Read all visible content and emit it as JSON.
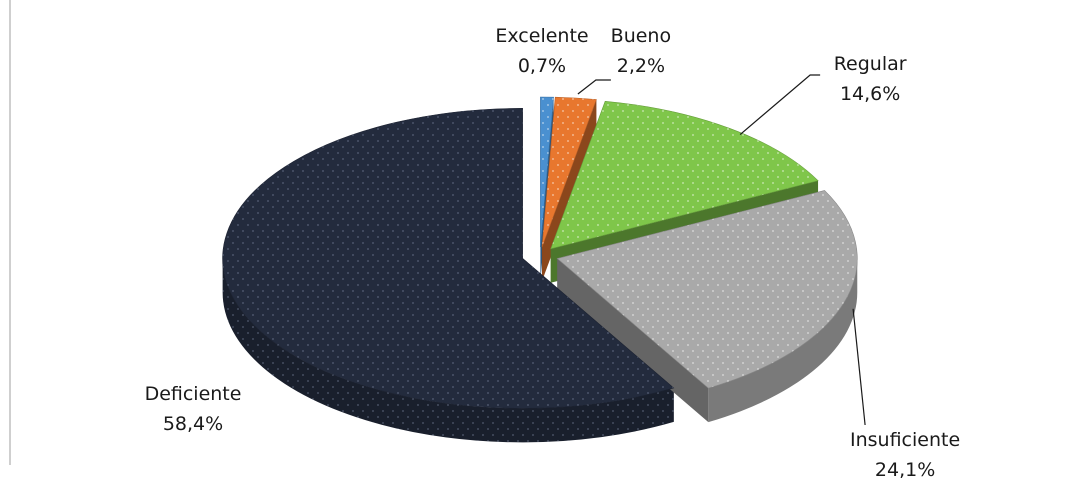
{
  "chart_data": {
    "type": "pie",
    "title": "",
    "categories": [
      "Excelente",
      "Bueno",
      "Regular",
      "Insuficiente",
      "Deficiente"
    ],
    "values": [
      0.7,
      2.2,
      14.6,
      24.1,
      58.4
    ],
    "value_labels": [
      "0,7%",
      "2,2%",
      "14,6%",
      "24,1%",
      "58,4%"
    ],
    "colors": [
      "#4a90d0",
      "#e8772e",
      "#7fc64a",
      "#a9a9a9",
      "#232b3d"
    ],
    "style": "3d-exploded",
    "legend": "none"
  }
}
